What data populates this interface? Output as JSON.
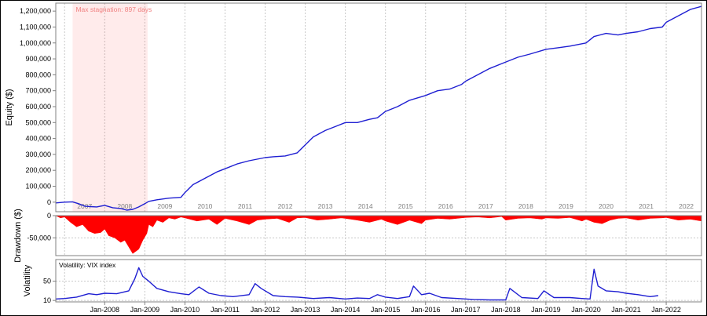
{
  "chart_data": [
    {
      "type": "line",
      "ylabel": "Equity ($)",
      "ylim": [
        -60000,
        1250000
      ],
      "yticks": [
        0,
        100000,
        200000,
        300000,
        400000,
        500000,
        600000,
        700000,
        800000,
        900000,
        1000000,
        1100000,
        1200000
      ],
      "ytick_labels": [
        "0",
        "100,000",
        "200,000",
        "300,000",
        "400,000",
        "500,000",
        "600,000",
        "700,000",
        "800,000",
        "900,000",
        "1,000,000",
        "1,100,000",
        "1,200,000"
      ],
      "xlim": [
        2006.78,
        2022.88
      ],
      "year_labels": [
        "2007",
        "2008",
        "2009",
        "2010",
        "2011",
        "2012",
        "2013",
        "2014",
        "2015",
        "2016",
        "2017",
        "2018",
        "2019",
        "2020",
        "2021",
        "2022"
      ],
      "annotation": {
        "text": "Max stagnation: 897 days",
        "start": 2007.2,
        "end": 2009.07
      },
      "series": [
        {
          "color": "#1f1fd2",
          "x": [
            2006.78,
            2007.0,
            2007.2,
            2007.35,
            2007.5,
            2007.65,
            2007.8,
            2008.0,
            2008.2,
            2008.4,
            2008.55,
            2008.7,
            2008.85,
            2009.0,
            2009.1,
            2009.3,
            2009.6,
            2009.9,
            2010.0,
            2010.2,
            2010.5,
            2010.8,
            2011.0,
            2011.3,
            2011.6,
            2012.0,
            2012.2,
            2012.5,
            2012.8,
            2013.0,
            2013.2,
            2013.5,
            2013.8,
            2014.0,
            2014.3,
            2014.6,
            2014.8,
            2015.0,
            2015.3,
            2015.6,
            2016.0,
            2016.3,
            2016.6,
            2016.9,
            2017.0,
            2017.3,
            2017.6,
            2018.0,
            2018.3,
            2018.6,
            2019.0,
            2019.3,
            2019.6,
            2020.0,
            2020.2,
            2020.5,
            2020.8,
            2021.0,
            2021.3,
            2021.6,
            2021.9,
            2022.0,
            2022.3,
            2022.6,
            2022.88
          ],
          "y": [
            -5000,
            0,
            2000,
            -10000,
            -25000,
            -28000,
            -30000,
            -20000,
            -35000,
            -40000,
            -50000,
            -45000,
            -30000,
            -10000,
            5000,
            15000,
            25000,
            30000,
            60000,
            110000,
            150000,
            190000,
            210000,
            240000,
            260000,
            280000,
            285000,
            290000,
            310000,
            360000,
            410000,
            450000,
            480000,
            500000,
            500000,
            520000,
            530000,
            570000,
            600000,
            640000,
            670000,
            700000,
            710000,
            740000,
            760000,
            800000,
            840000,
            880000,
            910000,
            930000,
            960000,
            970000,
            980000,
            1000000,
            1040000,
            1060000,
            1050000,
            1060000,
            1070000,
            1090000,
            1100000,
            1130000,
            1170000,
            1210000,
            1230000
          ]
        }
      ]
    },
    {
      "type": "area",
      "ylabel": "Drawdown ($)",
      "ylim": [
        -90000,
        0
      ],
      "yticks": [
        0,
        -50000
      ],
      "ytick_labels": [
        "0",
        "-50,000"
      ],
      "xlim": [
        2006.78,
        2022.88
      ],
      "series": [
        {
          "color": "#ff0000",
          "x": [
            2006.78,
            2006.9,
            2007.0,
            2007.15,
            2007.3,
            2007.45,
            2007.6,
            2007.75,
            2007.9,
            2008.0,
            2008.1,
            2008.25,
            2008.4,
            2008.5,
            2008.6,
            2008.7,
            2008.78,
            2008.85,
            2008.95,
            2009.05,
            2009.1,
            2009.2,
            2009.3,
            2009.45,
            2009.6,
            2009.75,
            2009.9,
            2010.0,
            2010.3,
            2010.6,
            2010.8,
            2011.0,
            2011.3,
            2011.6,
            2011.8,
            2012.0,
            2012.3,
            2012.6,
            2012.8,
            2013.0,
            2013.3,
            2013.6,
            2013.9,
            2014.0,
            2014.3,
            2014.6,
            2014.9,
            2015.0,
            2015.3,
            2015.6,
            2015.9,
            2016.0,
            2016.3,
            2016.6,
            2016.9,
            2017.0,
            2017.3,
            2017.6,
            2017.9,
            2018.0,
            2018.3,
            2018.6,
            2018.9,
            2019.0,
            2019.3,
            2019.6,
            2019.9,
            2020.0,
            2020.2,
            2020.4,
            2020.6,
            2020.8,
            2021.0,
            2021.3,
            2021.6,
            2021.9,
            2022.0,
            2022.3,
            2022.6,
            2022.88
          ],
          "y": [
            0,
            -5000,
            -3000,
            -15000,
            -25000,
            -20000,
            -35000,
            -40000,
            -38000,
            -30000,
            -45000,
            -50000,
            -60000,
            -55000,
            -70000,
            -85000,
            -80000,
            -75000,
            -55000,
            -40000,
            -20000,
            -25000,
            -10000,
            -15000,
            -5000,
            -8000,
            -3000,
            -5000,
            -12000,
            -8000,
            -20000,
            -6000,
            -12000,
            -20000,
            -10000,
            -8000,
            -6000,
            -15000,
            -5000,
            -4000,
            -10000,
            -8000,
            -5000,
            -6000,
            -10000,
            -15000,
            -8000,
            -12000,
            -20000,
            -10000,
            -18000,
            -10000,
            -6000,
            -8000,
            -5000,
            -4000,
            -3000,
            -5000,
            -2000,
            -10000,
            -6000,
            -5000,
            -8000,
            -5000,
            -6000,
            -4000,
            -12000,
            -8000,
            -15000,
            -18000,
            -10000,
            -6000,
            -5000,
            -10000,
            -6000,
            -5000,
            -4000,
            -10000,
            -8000,
            -12000
          ]
        }
      ]
    },
    {
      "type": "line",
      "ylabel": "Volatility",
      "legend_text": "Volatility: VIX index",
      "ylim": [
        7,
        95
      ],
      "yticks": [
        10,
        50
      ],
      "ytick_labels": [
        "10",
        "50"
      ],
      "xlim": [
        2006.78,
        2022.88
      ],
      "xtick_labels": [
        "Jan-2008",
        "Jan-2009",
        "Jan-2010",
        "Jan-2011",
        "Jan-2012",
        "Jan-2013",
        "Jan-2014",
        "Jan-2015",
        "Jan-2016",
        "Jan-2017",
        "Jan-2018",
        "Jan-2019",
        "Jan-2020",
        "Jan-2021",
        "Jan-2022"
      ],
      "xtick_positions": [
        2008.0,
        2009.0,
        2010.0,
        2011.0,
        2012.0,
        2013.0,
        2014.0,
        2015.0,
        2016.0,
        2017.0,
        2018.0,
        2019.0,
        2020.0,
        2021.0,
        2022.0
      ],
      "series": [
        {
          "color": "#1f1fd2",
          "x": [
            2006.78,
            2007.0,
            2007.3,
            2007.6,
            2007.8,
            2008.0,
            2008.3,
            2008.6,
            2008.75,
            2008.85,
            2008.95,
            2009.1,
            2009.3,
            2009.6,
            2009.9,
            2010.1,
            2010.35,
            2010.6,
            2010.9,
            2011.2,
            2011.6,
            2011.75,
            2011.9,
            2012.2,
            2012.5,
            2012.8,
            2013.2,
            2013.6,
            2014.0,
            2014.3,
            2014.6,
            2014.8,
            2015.0,
            2015.3,
            2015.6,
            2015.7,
            2015.9,
            2016.1,
            2016.4,
            2016.8,
            2017.2,
            2017.6,
            2018.0,
            2018.1,
            2018.4,
            2018.8,
            2018.95,
            2019.2,
            2019.6,
            2019.9,
            2020.1,
            2020.2,
            2020.3,
            2020.5,
            2020.8,
            2021.0,
            2021.3,
            2021.6,
            2021.8
          ],
          "y": [
            13,
            14,
            17,
            24,
            22,
            25,
            24,
            30,
            55,
            78,
            60,
            50,
            35,
            28,
            24,
            22,
            38,
            25,
            20,
            18,
            22,
            45,
            35,
            20,
            18,
            17,
            14,
            16,
            13,
            15,
            14,
            22,
            17,
            14,
            18,
            40,
            22,
            25,
            16,
            14,
            12,
            11,
            11,
            35,
            16,
            14,
            30,
            16,
            16,
            14,
            13,
            75,
            40,
            30,
            28,
            25,
            22,
            18,
            20
          ]
        }
      ]
    }
  ]
}
